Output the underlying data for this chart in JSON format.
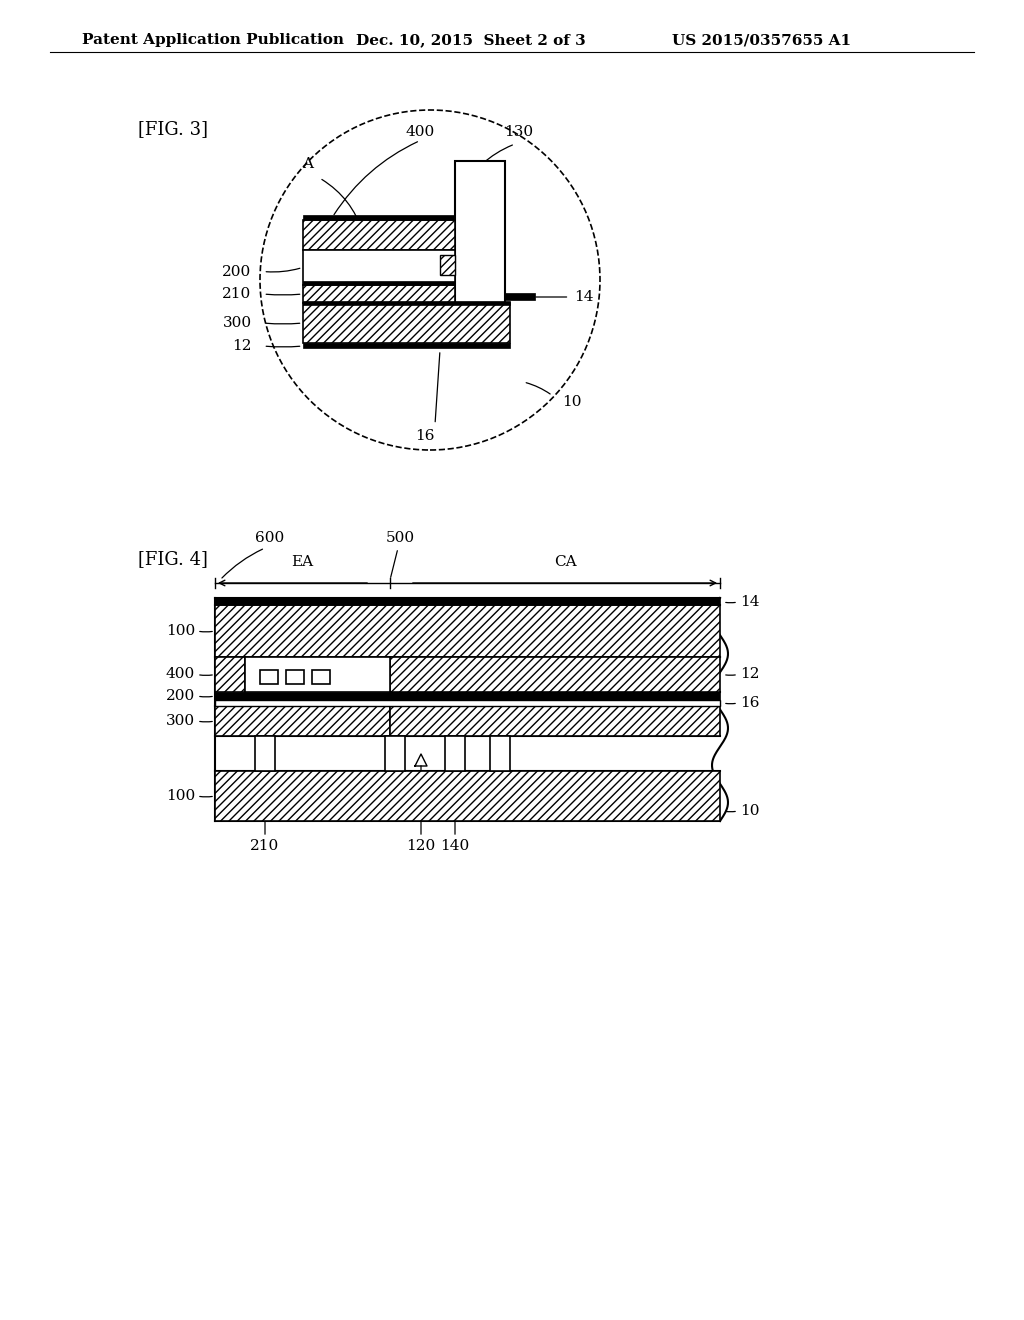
{
  "background_color": "#ffffff",
  "header_text": "Patent Application Publication",
  "header_date": "Dec. 10, 2015  Sheet 2 of 3",
  "header_patent": "US 2015/0357655 A1",
  "fig3_label": "[FIG. 3]",
  "fig4_label": "[FIG. 4]"
}
